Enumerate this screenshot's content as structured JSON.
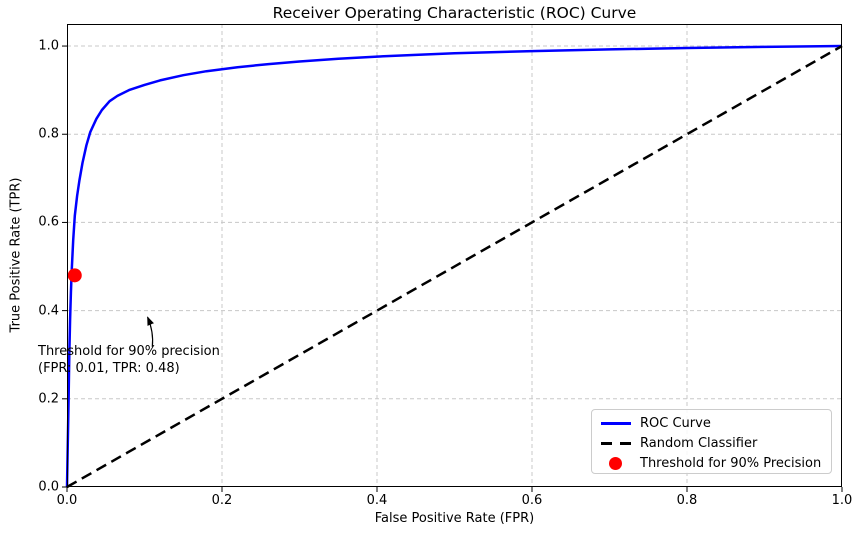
{
  "figure": {
    "title": "Receiver Operating Characteristic (ROC) Curve",
    "xlabel": "False Positive Rate (FPR)",
    "ylabel": "True Positive Rate (TPR)"
  },
  "legend": {
    "position": "lower right",
    "items": [
      {
        "label": "ROC Curve",
        "marker": "solid-line",
        "color": "#0000ff"
      },
      {
        "label": "Random Classifier",
        "marker": "dashed-line",
        "color": "#000000"
      },
      {
        "label": "Threshold for 90% Precision",
        "marker": "circle",
        "color": "#ff0000"
      }
    ]
  },
  "annotation": {
    "line1": "Threshold for 90% precision",
    "line2": "(FPR: 0.01, TPR: 0.48)"
  },
  "colors": {
    "roc_curve": "#0000ff",
    "random_classifier": "#000000",
    "threshold_point": "#ff0000",
    "grid": "#c8c8c8",
    "spine": "#000000",
    "background": "#ffffff",
    "legend_border": "#cccccc"
  },
  "chart_data": {
    "type": "line",
    "title": "Receiver Operating Characteristic (ROC) Curve",
    "xlabel": "False Positive Rate (FPR)",
    "ylabel": "True Positive Rate (TPR)",
    "xlim": [
      0.0,
      1.0
    ],
    "ylim": [
      0.0,
      1.05
    ],
    "x_ticks": [
      0.0,
      0.2,
      0.4,
      0.6,
      0.8,
      1.0
    ],
    "y_ticks": [
      0.0,
      0.2,
      0.4,
      0.6,
      0.8,
      1.0
    ],
    "x_tick_labels": [
      "0.0",
      "0.2",
      "0.4",
      "0.6",
      "0.8",
      "1.0"
    ],
    "y_tick_labels": [
      "0.0",
      "0.2",
      "0.4",
      "0.6",
      "0.8",
      "1.0"
    ],
    "grid": true,
    "grid_style": "dashed",
    "legend_position": "lower right",
    "series": [
      {
        "name": "ROC Curve",
        "type": "line",
        "style": "solid",
        "color": "#0000ff",
        "x": [
          0.0,
          0.001,
          0.002,
          0.003,
          0.004,
          0.005,
          0.006,
          0.008,
          0.01,
          0.013,
          0.016,
          0.02,
          0.025,
          0.03,
          0.038,
          0.045,
          0.055,
          0.065,
          0.08,
          0.1,
          0.12,
          0.15,
          0.18,
          0.22,
          0.26,
          0.3,
          0.35,
          0.4,
          0.45,
          0.5,
          0.6,
          0.7,
          0.8,
          0.9,
          1.0
        ],
        "y": [
          0.0,
          0.1,
          0.2,
          0.3,
          0.38,
          0.44,
          0.49,
          0.56,
          0.615,
          0.66,
          0.695,
          0.735,
          0.775,
          0.805,
          0.835,
          0.855,
          0.875,
          0.887,
          0.9,
          0.912,
          0.922,
          0.934,
          0.943,
          0.952,
          0.959,
          0.965,
          0.971,
          0.976,
          0.98,
          0.9835,
          0.9885,
          0.9925,
          0.9955,
          0.998,
          1.0
        ]
      },
      {
        "name": "Random Classifier",
        "type": "line",
        "style": "dashed",
        "color": "#000000",
        "x": [
          0.0,
          1.0
        ],
        "y": [
          0.0,
          1.0
        ]
      },
      {
        "name": "Threshold for 90% Precision",
        "type": "scatter",
        "marker": "circle",
        "color": "#ff0000",
        "x": [
          0.01
        ],
        "y": [
          0.48
        ]
      }
    ],
    "annotation": {
      "text": "Threshold for 90% precision\n(FPR: 0.01, TPR: 0.48)",
      "point": [
        0.01,
        0.48
      ],
      "arrow_from": [
        0.11,
        0.318
      ],
      "arrow_to": [
        0.104,
        0.385
      ]
    }
  }
}
